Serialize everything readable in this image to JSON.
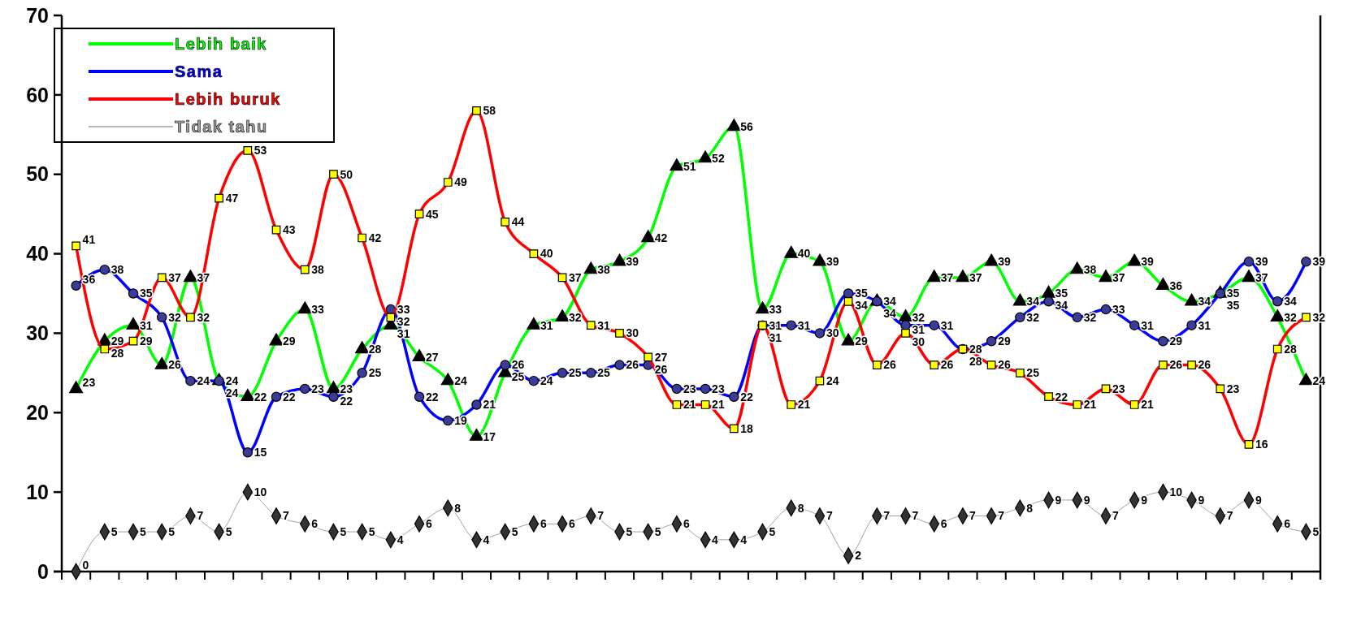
{
  "chart_data": {
    "type": "line",
    "categories": [
      null,
      null,
      null,
      null,
      null,
      null,
      null,
      null,
      null,
      null,
      null,
      null,
      null,
      null,
      null,
      null,
      null,
      null,
      null,
      null,
      null,
      null,
      null,
      null,
      null,
      null,
      null,
      null,
      null,
      null,
      null,
      null,
      null,
      null,
      null,
      null,
      null,
      null,
      null,
      null,
      null,
      null,
      null,
      null
    ],
    "series": [
      {
        "name": "Lebih baik",
        "color": "#00ff00",
        "marker": "triangle",
        "values": [
          23,
          29,
          31,
          26,
          37,
          24,
          22,
          29,
          33,
          23,
          28,
          31,
          27,
          24,
          17,
          25,
          31,
          32,
          38,
          39,
          42,
          51,
          52,
          56,
          33,
          40,
          39,
          29,
          34,
          32,
          37,
          37,
          39,
          34,
          35,
          38,
          37,
          39,
          36,
          34,
          35,
          37,
          32,
          24
        ]
      },
      {
        "name": "Sama",
        "color": "#0000ff",
        "marker": "circle",
        "values": [
          36,
          38,
          35,
          32,
          24,
          24,
          15,
          22,
          23,
          22,
          25,
          33,
          22,
          19,
          21,
          26,
          24,
          25,
          25,
          26,
          26,
          23,
          23,
          22,
          31,
          31,
          30,
          35,
          34,
          31,
          31,
          28,
          29,
          32,
          34,
          32,
          33,
          31,
          29,
          31,
          35,
          39,
          34,
          39
        ]
      },
      {
        "name": "Lebih buruk",
        "color": "#ff0000",
        "marker": "square",
        "values": [
          41,
          28,
          29,
          37,
          32,
          47,
          53,
          43,
          38,
          50,
          42,
          32,
          45,
          49,
          58,
          44,
          40,
          37,
          31,
          30,
          27,
          21,
          21,
          18,
          31,
          21,
          24,
          34,
          26,
          30,
          26,
          28,
          26,
          25,
          22,
          21,
          23,
          21,
          26,
          26,
          23,
          16,
          28,
          32
        ]
      },
      {
        "name": "Tidak tahu",
        "color": "#a0a0a0",
        "marker": "diamond",
        "values": [
          0,
          5,
          5,
          5,
          7,
          5,
          10,
          7,
          6,
          5,
          5,
          4,
          6,
          8,
          4,
          5,
          6,
          6,
          7,
          5,
          5,
          6,
          4,
          4,
          5,
          8,
          7,
          2,
          7,
          7,
          6,
          7,
          7,
          8,
          9,
          9,
          7,
          9,
          10,
          9,
          7,
          9,
          6,
          5
        ]
      }
    ],
    "ylim": [
      0,
      70
    ],
    "yticks": [
      0,
      10,
      20,
      30,
      40,
      50,
      60,
      70
    ],
    "grid": false,
    "legend": "top left",
    "data_labels": true
  }
}
